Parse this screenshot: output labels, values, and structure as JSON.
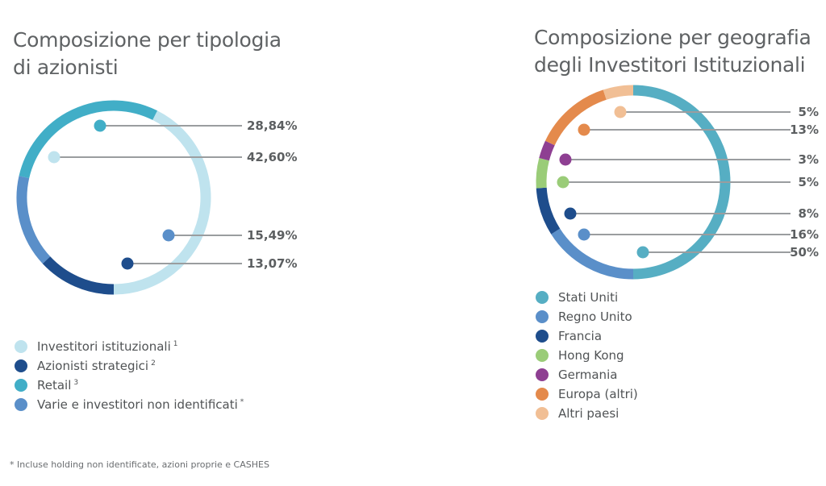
{
  "footnote": "* Incluse holding non identificate, azioni proprie e CASHES",
  "chart_data": [
    {
      "type": "pie",
      "variant": "donut",
      "title": [
        "Composizione per tipologia",
        "di azionisti"
      ],
      "slices": [
        {
          "label": "Investitori istituzionali",
          "sup": "1",
          "value": 42.6,
          "value_label": "42,60%",
          "color": "#bfe3ee",
          "marker_on": "start"
        },
        {
          "label": "Retail",
          "sup": "3",
          "value": 28.84,
          "value_label": "28,84%",
          "color": "#41aec7",
          "marker_on": "start"
        },
        {
          "label": "Varie e investitori non identificati",
          "sup": "*",
          "value": 15.49,
          "value_label": "15,49%",
          "color": "#5a8fc9",
          "marker_on": "end"
        },
        {
          "label": "Azionisti strategici",
          "sup": "2",
          "value": 13.07,
          "value_label": "13,07%",
          "color": "#1e4d8c",
          "marker_on": "end"
        }
      ],
      "legend": [
        {
          "label": "Investitori istituzionali",
          "sup": "1",
          "color": "#bfe3ee"
        },
        {
          "label": "Azionisti strategici",
          "sup": "2",
          "color": "#1e4d8c"
        },
        {
          "label": "Retail",
          "sup": "3",
          "color": "#41aec7"
        },
        {
          "label": "Varie e investitori non identificati",
          "sup": "*",
          "color": "#5a8fc9"
        }
      ],
      "legend_position": "bottom-left"
    },
    {
      "type": "pie",
      "variant": "donut",
      "title": [
        "Composizione per geografia",
        "degli Investitori Istituzionali"
      ],
      "slices": [
        {
          "label": "Stati Uniti",
          "value": 50,
          "value_label": "50%",
          "color": "#56aec3"
        },
        {
          "label": "Regno Unito",
          "value": 16,
          "value_label": "16%",
          "color": "#5a8fc9"
        },
        {
          "label": "Francia",
          "value": 8,
          "value_label": "8%",
          "color": "#1e4d8c"
        },
        {
          "label": "Hong Kong",
          "value": 5,
          "value_label": "5%",
          "color": "#9acc78"
        },
        {
          "label": "Germania",
          "value": 3,
          "value_label": "3%",
          "color": "#8e3f92"
        },
        {
          "label": "Europa (altri)",
          "value": 13,
          "value_label": "13%",
          "color": "#e48a4c"
        },
        {
          "label": "Altri paesi",
          "value": 5,
          "value_label": "5%",
          "color": "#f1bf95"
        }
      ],
      "legend_position": "bottom-left"
    }
  ]
}
